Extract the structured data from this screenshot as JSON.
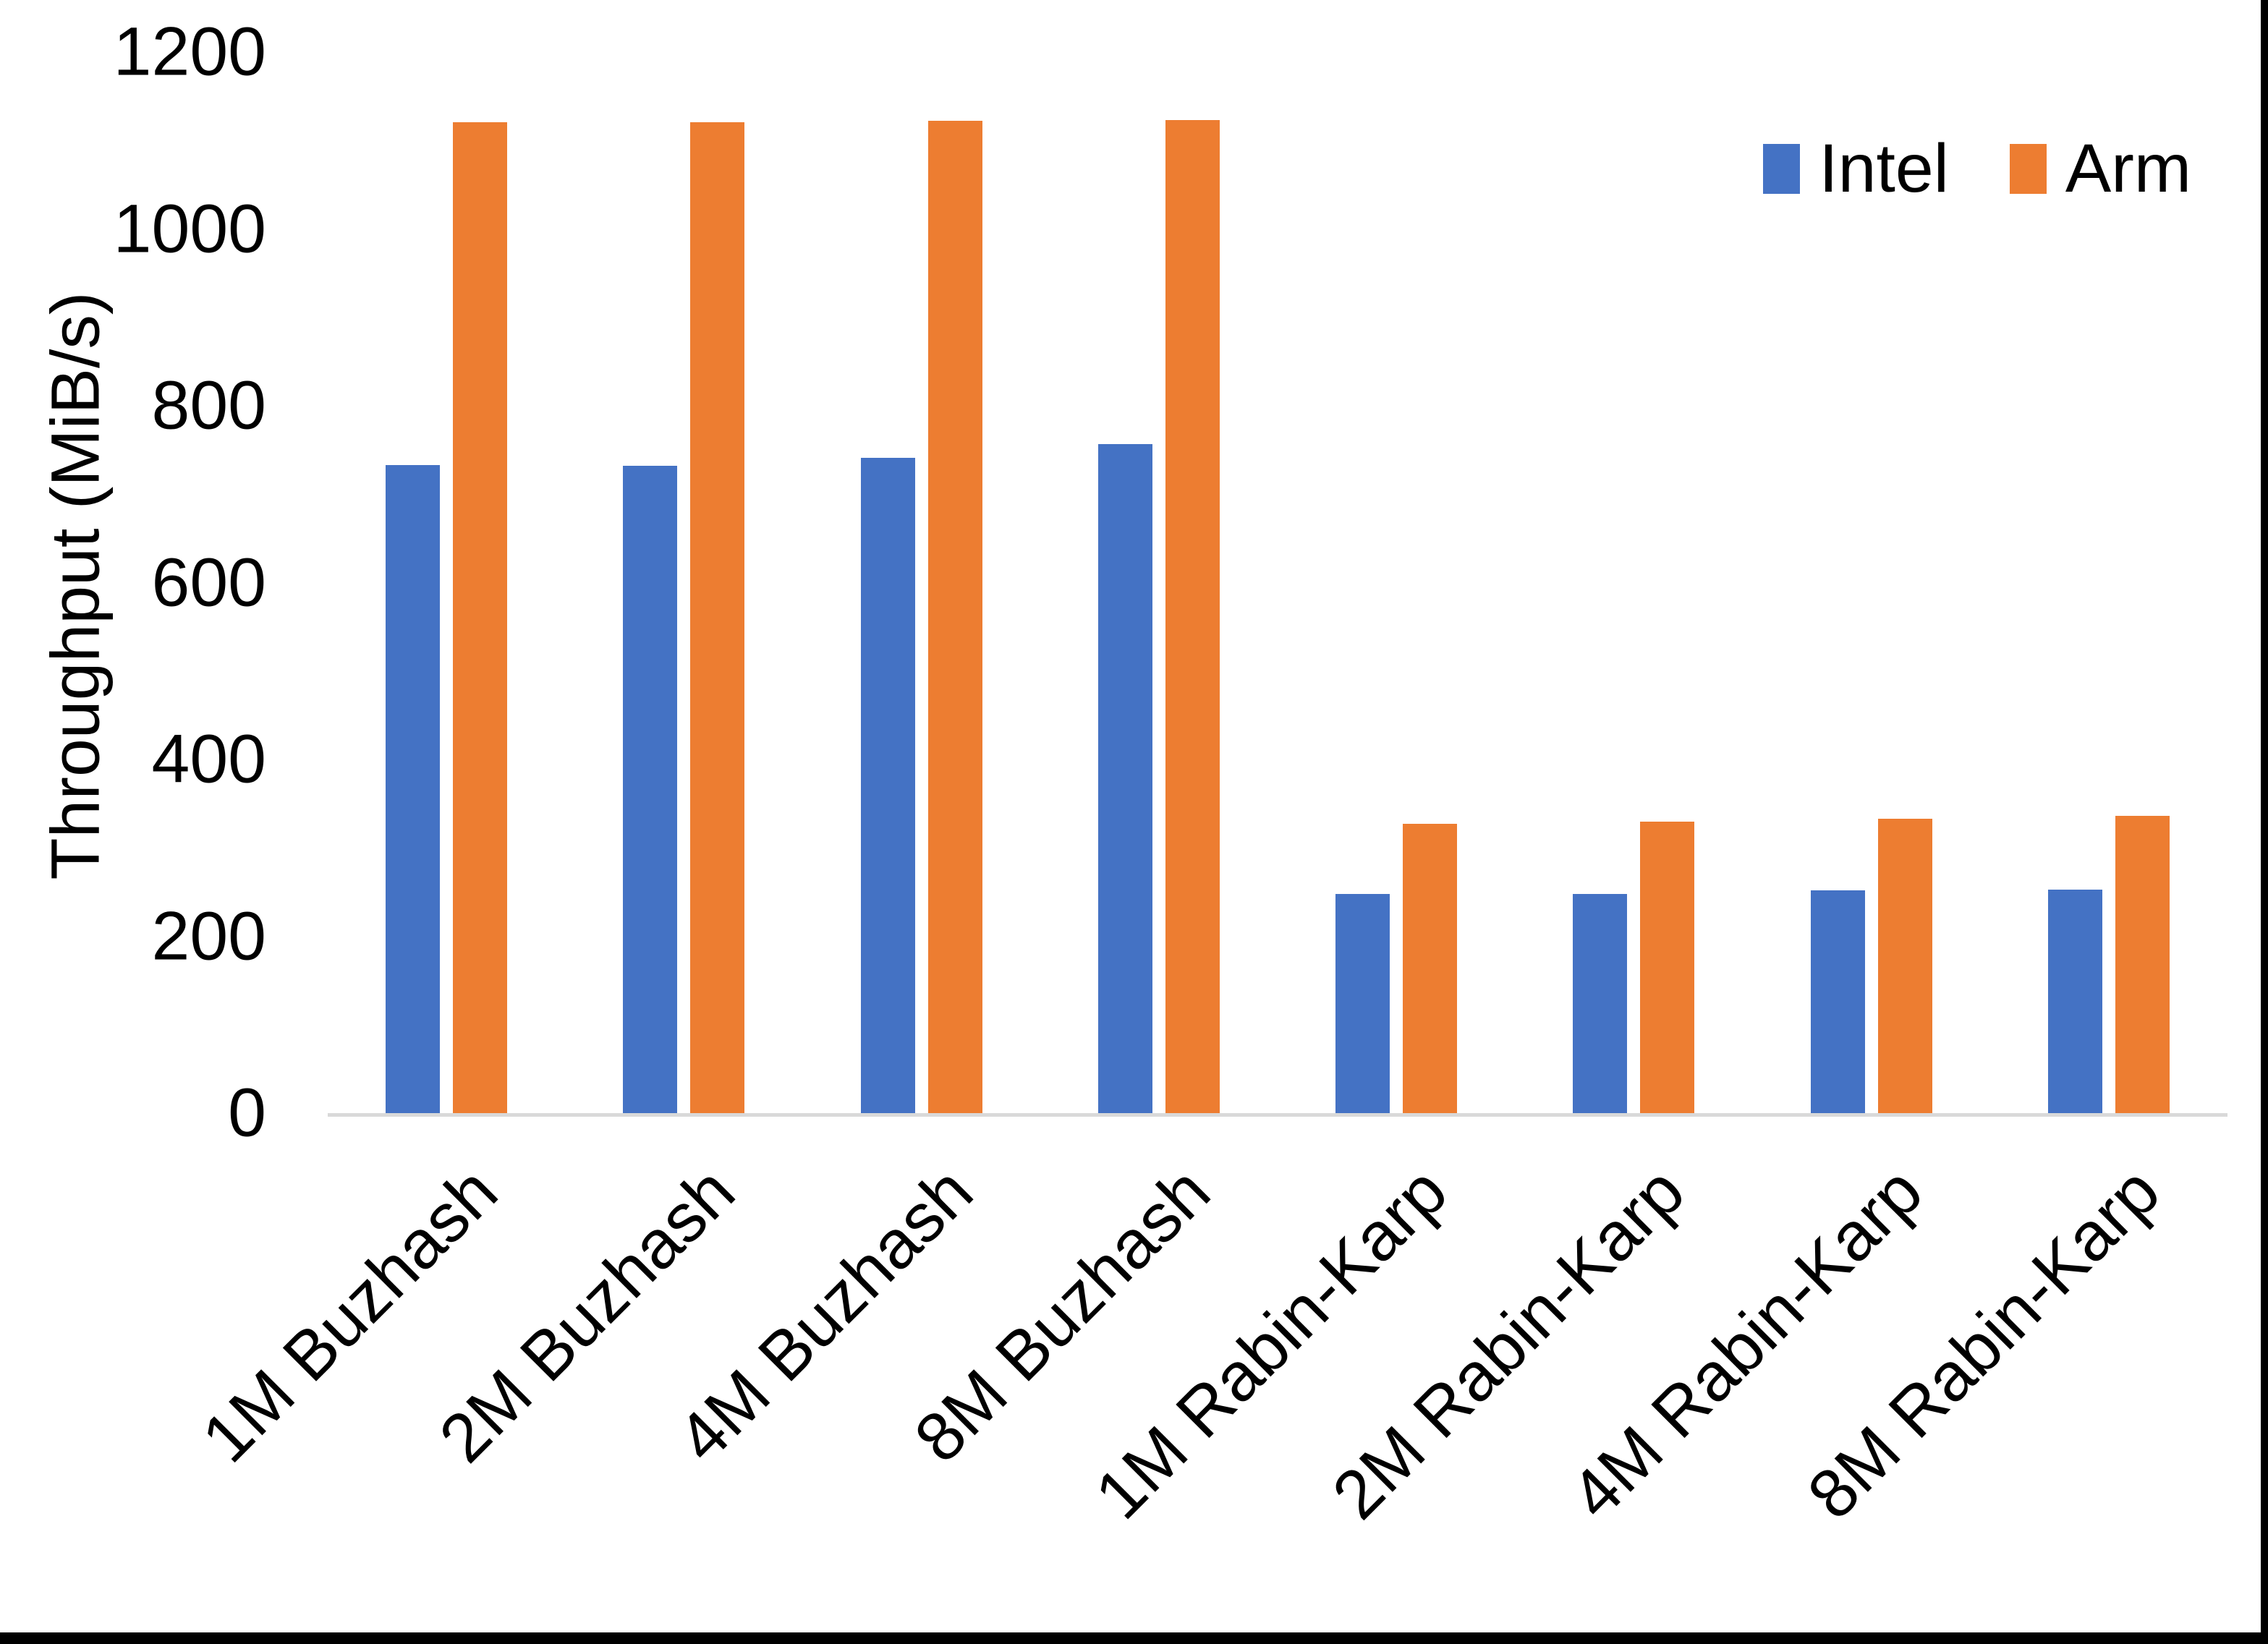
{
  "chart_data": {
    "type": "bar",
    "title": "",
    "xlabel": "",
    "ylabel": "Throughput (MiB/s)",
    "ylim": [
      0,
      1200
    ],
    "yticks": [
      0,
      200,
      400,
      600,
      800,
      1000,
      1200
    ],
    "grid": false,
    "legend_position": "top-right",
    "categories": [
      "1M Buzhash",
      "2M Buzhash",
      "4M Buzhash",
      "8M Buzhash",
      "1M Rabin-Karp",
      "2M Rabin-Karp",
      "4M Rabin-Karp",
      "8M Rabin-Karp"
    ],
    "series": [
      {
        "name": "Intel",
        "color": "#4472C4",
        "values": [
          733,
          732,
          741,
          757,
          248,
          248,
          252,
          253
        ]
      },
      {
        "name": "Arm",
        "color": "#ED7D31",
        "values": [
          1121,
          1121,
          1122,
          1123,
          327,
          330,
          333,
          336
        ]
      }
    ]
  },
  "colors": {
    "axis_line": "#D9D9D9",
    "text": "#000000",
    "background": "#FFFFFF",
    "edge_border": "#000000"
  }
}
